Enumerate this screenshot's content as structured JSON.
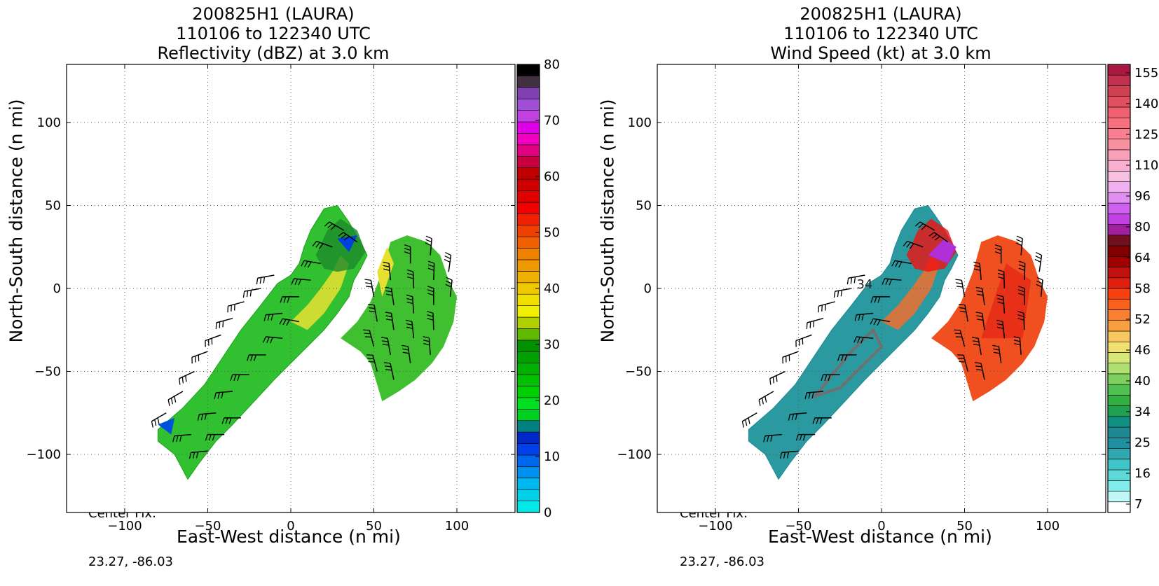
{
  "panels": [
    {
      "id": "reflectivity",
      "title_line1": "200825H1 (LAURA)",
      "title_line2": "110106 to 122340 UTC",
      "title_line3": "Reflectivity (dBZ) at 3.0 km",
      "xlabel": "East-West distance (n mi)",
      "ylabel": "North-South distance (n mi)",
      "center_fix_label": "Center Fix:",
      "center_fix_value": "23.27, -86.03"
    },
    {
      "id": "windspeed",
      "title_line1": "200825H1 (LAURA)",
      "title_line2": "110106 to 122340 UTC",
      "title_line3": "Wind Speed (kt) at 3.0 km",
      "xlabel": "East-West distance (n mi)",
      "ylabel": "North-South distance (n mi)",
      "center_fix_label": "Center Fix:",
      "center_fix_value": "23.27, -86.03"
    }
  ],
  "chart_data": [
    {
      "type": "heatmap",
      "title": "200825H1 (LAURA) 110106 to 122340 UTC Reflectivity (dBZ) at 3.0 km",
      "xlabel": "East-West distance (n mi)",
      "ylabel": "North-South distance (n mi)",
      "xlim": [
        -135,
        135
      ],
      "ylim": [
        -135,
        135
      ],
      "xticks": [
        -100,
        -50,
        0,
        50,
        100
      ],
      "yticks": [
        -100,
        -50,
        0,
        50,
        100
      ],
      "grid": true,
      "colorbar": {
        "min": 0,
        "max": 80,
        "step": 2.5,
        "tick_values": [
          0,
          10,
          20,
          30,
          40,
          50,
          60,
          70,
          80
        ],
        "colors": [
          "#00e8e8",
          "#00d0e8",
          "#00b8f0",
          "#0090f0",
          "#0068f0",
          "#0040e8",
          "#0028c8",
          "#008080",
          "#00d020",
          "#00e020",
          "#00d000",
          "#00c000",
          "#00b000",
          "#00a000",
          "#009000",
          "#60b800",
          "#b0d000",
          "#f0f000",
          "#f0e000",
          "#f0c800",
          "#f0b000",
          "#f09800",
          "#f08000",
          "#f06000",
          "#f04000",
          "#f02000",
          "#f00000",
          "#e00000",
          "#d00000",
          "#c00000",
          "#c80040",
          "#e00080",
          "#f000c0",
          "#e000e8",
          "#c040e0",
          "#a050d8",
          "#8040b0",
          "#403040",
          "#000000"
        ]
      }
    },
    {
      "type": "heatmap",
      "title": "200825H1 (LAURA) 110106 to 122340 UTC Wind Speed (kt) at 3.0 km",
      "xlabel": "East-West distance (n mi)",
      "ylabel": "North-South distance (n mi)",
      "xlim": [
        -135,
        135
      ],
      "ylim": [
        -135,
        135
      ],
      "xticks": [
        -100,
        -50,
        0,
        50,
        100
      ],
      "yticks": [
        -100,
        -50,
        0,
        50,
        100
      ],
      "grid": true,
      "contour_label": "34",
      "colorbar": {
        "tick_labels": [
          "7",
          "16",
          "25",
          "34",
          "40",
          "46",
          "52",
          "58",
          "64",
          "80",
          "96",
          "110",
          "125",
          "140",
          "155"
        ],
        "colors": [
          "#ffffff",
          "#c0f8f8",
          "#80ecec",
          "#60d8d8",
          "#40c4c8",
          "#30a8b0",
          "#2090a0",
          "#208890",
          "#109080",
          "#20a050",
          "#30b040",
          "#50c050",
          "#80d060",
          "#b0e070",
          "#d8e878",
          "#f0e070",
          "#f8c860",
          "#f8a040",
          "#f88030",
          "#f86020",
          "#f84010",
          "#e02010",
          "#c01010",
          "#a00000",
          "#800000",
          "#701020",
          "#a020a0",
          "#c040e0",
          "#d060f0",
          "#e090f0",
          "#f0b0f0",
          "#f8c0e0",
          "#f8b0d0",
          "#f8a0b8",
          "#f890a0",
          "#f88090",
          "#f87080",
          "#f06070",
          "#e05060",
          "#d04050",
          "#c03050",
          "#a81840"
        ]
      }
    }
  ]
}
